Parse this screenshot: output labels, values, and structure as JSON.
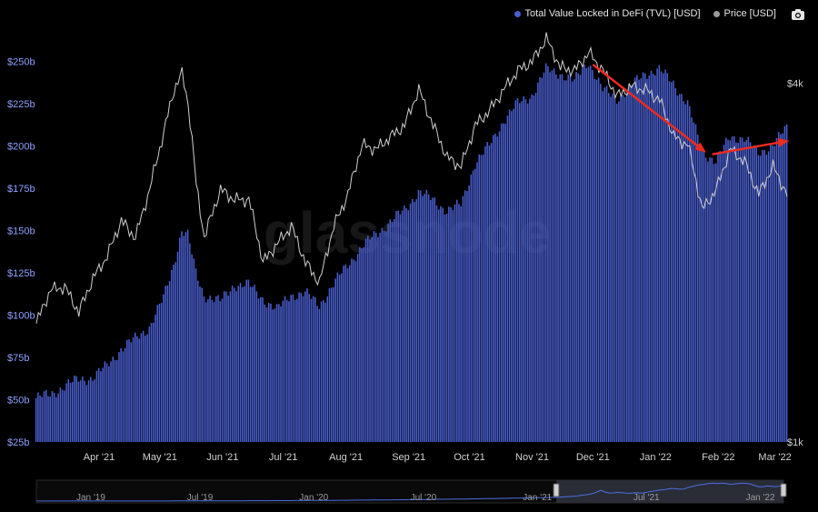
{
  "legend": {
    "tvl_label": "Total Value Locked in DeFi (TVL) [USD]",
    "price_label": "Price [USD]"
  },
  "colors": {
    "tvl": "#4a5fd0",
    "price": "#cfcfcf",
    "left_axis_text": "#8ea0ff",
    "arrow": "#ee2a1f",
    "background": "#000000"
  },
  "watermark": "glassnode",
  "icons": [
    "camera-icon"
  ],
  "chart_data": {
    "type": "bar+line",
    "x_tick_labels": [
      "Apr '21",
      "May '21",
      "Jun '21",
      "Jul '21",
      "Aug '21",
      "Sep '21",
      "Oct '21",
      "Nov '21",
      "Dec '21",
      "Jan '22",
      "Feb '22",
      "Mar '22"
    ],
    "left_axis": {
      "ticks": [
        "$25b",
        "$50b",
        "$75b",
        "$100b",
        "$125b",
        "$150b",
        "$175b",
        "$200b",
        "$225b",
        "$250b"
      ],
      "range": [
        25,
        255
      ],
      "unit": "USD billions"
    },
    "right_axis": {
      "ticks": [
        "$1k",
        "$4k"
      ],
      "scale": "log",
      "range": [
        1000,
        4500
      ]
    },
    "date_range": [
      "2021-03-01",
      "2022-03-07"
    ],
    "series": [
      {
        "name": "Total Value Locked in DeFi (TVL) [USD]",
        "type": "bar",
        "axis": "left",
        "points": [
          [
            "2021-03-01",
            51
          ],
          [
            "2021-03-08",
            53
          ],
          [
            "2021-03-15",
            58
          ],
          [
            "2021-03-22",
            62
          ],
          [
            "2021-03-29",
            63
          ],
          [
            "2021-04-05",
            70
          ],
          [
            "2021-04-12",
            80
          ],
          [
            "2021-04-19",
            86
          ],
          [
            "2021-04-26",
            93
          ],
          [
            "2021-05-03",
            110
          ],
          [
            "2021-05-08",
            130
          ],
          [
            "2021-05-12",
            150
          ],
          [
            "2021-05-15",
            147
          ],
          [
            "2021-05-19",
            125
          ],
          [
            "2021-05-23",
            112
          ],
          [
            "2021-05-31",
            108
          ],
          [
            "2021-06-07",
            118
          ],
          [
            "2021-06-14",
            118
          ],
          [
            "2021-06-21",
            110
          ],
          [
            "2021-06-28",
            103
          ],
          [
            "2021-07-05",
            112
          ],
          [
            "2021-07-12",
            113
          ],
          [
            "2021-07-19",
            106
          ],
          [
            "2021-07-26",
            118
          ],
          [
            "2021-08-02",
            130
          ],
          [
            "2021-08-09",
            140
          ],
          [
            "2021-08-16",
            148
          ],
          [
            "2021-08-23",
            155
          ],
          [
            "2021-08-30",
            162
          ],
          [
            "2021-09-06",
            173
          ],
          [
            "2021-09-13",
            168
          ],
          [
            "2021-09-20",
            162
          ],
          [
            "2021-09-27",
            165
          ],
          [
            "2021-10-04",
            190
          ],
          [
            "2021-10-11",
            200
          ],
          [
            "2021-10-18",
            215
          ],
          [
            "2021-10-25",
            225
          ],
          [
            "2021-11-01",
            230
          ],
          [
            "2021-11-08",
            245
          ],
          [
            "2021-11-15",
            243
          ],
          [
            "2021-11-22",
            238
          ],
          [
            "2021-11-29",
            250
          ],
          [
            "2021-12-06",
            233
          ],
          [
            "2021-12-13",
            228
          ],
          [
            "2021-12-20",
            235
          ],
          [
            "2021-12-27",
            243
          ],
          [
            "2022-01-03",
            245
          ],
          [
            "2022-01-10",
            237
          ],
          [
            "2022-01-17",
            225
          ],
          [
            "2022-01-24",
            197
          ],
          [
            "2022-01-31",
            191
          ],
          [
            "2022-02-07",
            205
          ],
          [
            "2022-02-14",
            205
          ],
          [
            "2022-02-21",
            195
          ],
          [
            "2022-02-28",
            201
          ],
          [
            "2022-03-07",
            210
          ]
        ]
      },
      {
        "name": "Price [USD]",
        "type": "line",
        "axis": "right",
        "points": [
          [
            "2021-03-01",
            1580
          ],
          [
            "2021-03-08",
            1800
          ],
          [
            "2021-03-15",
            1820
          ],
          [
            "2021-03-22",
            1650
          ],
          [
            "2021-03-29",
            1880
          ],
          [
            "2021-04-05",
            2050
          ],
          [
            "2021-04-12",
            2350
          ],
          [
            "2021-04-19",
            2200
          ],
          [
            "2021-04-26",
            2650
          ],
          [
            "2021-05-03",
            3300
          ],
          [
            "2021-05-08",
            3900
          ],
          [
            "2021-05-12",
            4150
          ],
          [
            "2021-05-15",
            3700
          ],
          [
            "2021-05-19",
            2700
          ],
          [
            "2021-05-23",
            2200
          ],
          [
            "2021-05-31",
            2650
          ],
          [
            "2021-06-07",
            2550
          ],
          [
            "2021-06-14",
            2550
          ],
          [
            "2021-06-21",
            2000
          ],
          [
            "2021-06-28",
            2150
          ],
          [
            "2021-07-05",
            2300
          ],
          [
            "2021-07-12",
            2000
          ],
          [
            "2021-07-19",
            1850
          ],
          [
            "2021-07-26",
            2300
          ],
          [
            "2021-08-02",
            2600
          ],
          [
            "2021-08-09",
            3150
          ],
          [
            "2021-08-16",
            3100
          ],
          [
            "2021-08-23",
            3250
          ],
          [
            "2021-08-30",
            3400
          ],
          [
            "2021-09-06",
            3900
          ],
          [
            "2021-09-13",
            3400
          ],
          [
            "2021-09-20",
            3000
          ],
          [
            "2021-09-27",
            2900
          ],
          [
            "2021-10-04",
            3400
          ],
          [
            "2021-10-11",
            3600
          ],
          [
            "2021-10-18",
            3900
          ],
          [
            "2021-10-25",
            4200
          ],
          [
            "2021-11-01",
            4350
          ],
          [
            "2021-11-08",
            4750
          ],
          [
            "2021-11-15",
            4250
          ],
          [
            "2021-11-22",
            4200
          ],
          [
            "2021-11-29",
            4500
          ],
          [
            "2021-12-06",
            4200
          ],
          [
            "2021-12-13",
            3800
          ],
          [
            "2021-12-20",
            3950
          ],
          [
            "2021-12-27",
            3900
          ],
          [
            "2022-01-03",
            3750
          ],
          [
            "2022-01-10",
            3250
          ],
          [
            "2022-01-17",
            3150
          ],
          [
            "2022-01-24",
            2450
          ],
          [
            "2022-01-31",
            2650
          ],
          [
            "2022-02-07",
            3100
          ],
          [
            "2022-02-14",
            2950
          ],
          [
            "2022-02-21",
            2600
          ],
          [
            "2022-02-28",
            2900
          ],
          [
            "2022-03-07",
            2600
          ]
        ]
      }
    ],
    "annotations": [
      {
        "type": "arrow",
        "from": [
          "2021-12-01",
          248
        ],
        "to": [
          "2022-01-26",
          196
        ]
      },
      {
        "type": "arrow",
        "from": [
          "2022-01-29",
          195
        ],
        "to": [
          "2022-03-08",
          203
        ]
      }
    ],
    "navigator": {
      "tick_labels": [
        "Jan '19",
        "Jul '19",
        "Jan '20",
        "Jul '20",
        "Jan '21",
        "Jul '21",
        "Jan '22"
      ],
      "date_range": [
        "2018-11-01",
        "2022-03-08"
      ],
      "selected_range": [
        "2021-03-01",
        "2022-03-08"
      ]
    },
    "legend_position": "top-right",
    "grid": false
  }
}
